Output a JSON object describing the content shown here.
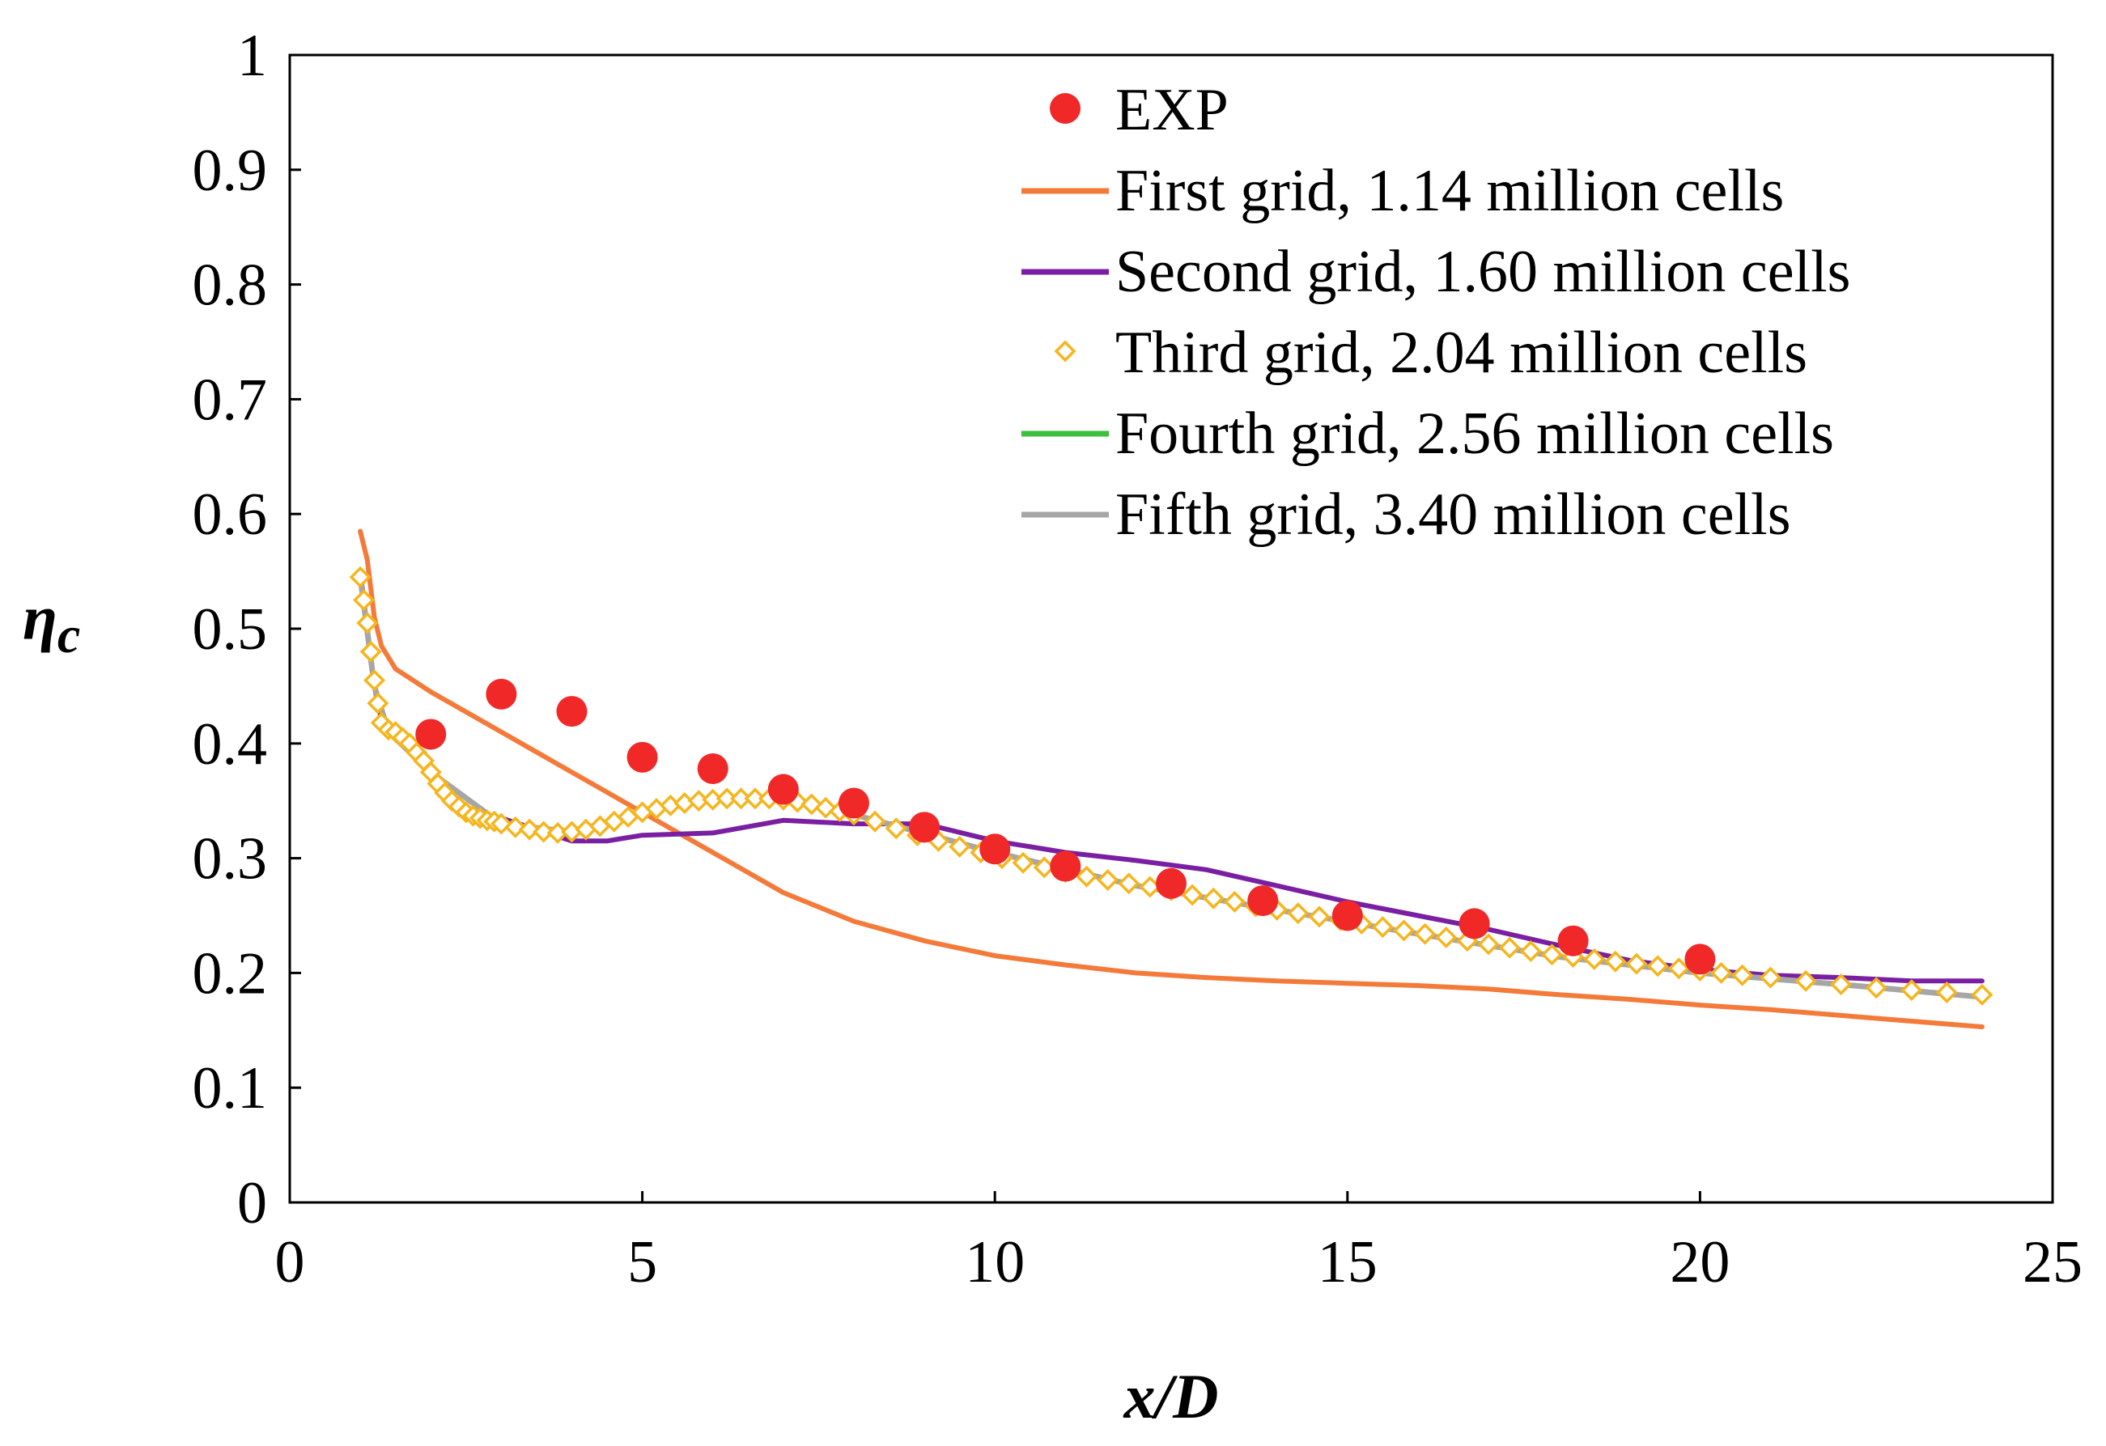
{
  "chart_data": {
    "type": "line",
    "title": "",
    "xlabel": "x/D",
    "ylabel_main": "η",
    "ylabel_sub": "c",
    "xlim": [
      0,
      25
    ],
    "ylim": [
      0,
      1
    ],
    "xticks": [
      0,
      5,
      10,
      15,
      20,
      25
    ],
    "yticks": [
      0,
      0.1,
      0.2,
      0.3,
      0.4,
      0.5,
      0.6,
      0.7,
      0.8,
      0.9,
      1
    ],
    "xtick_labels": [
      "0",
      "5",
      "10",
      "15",
      "20",
      "25"
    ],
    "ytick_labels": [
      "0",
      "0.1",
      "0.2",
      "0.3",
      "0.4",
      "0.5",
      "0.6",
      "0.7",
      "0.8",
      "0.9",
      "1"
    ],
    "grid": false,
    "legend_position": "top-right",
    "series": [
      {
        "name": "EXP",
        "kind": "scatter",
        "marker": "circle",
        "color": "#f02828",
        "x": [
          2,
          3,
          4,
          5,
          6,
          7,
          8,
          9,
          10,
          11,
          12.5,
          13.8,
          15,
          16.8,
          18.2,
          20
        ],
        "y": [
          0.408,
          0.443,
          0.428,
          0.388,
          0.378,
          0.36,
          0.348,
          0.327,
          0.308,
          0.293,
          0.278,
          0.263,
          0.25,
          0.243,
          0.228,
          0.212
        ]
      },
      {
        "name": "First grid, 1.14 million cells",
        "kind": "line",
        "color": "#f47a3a",
        "x": [
          1,
          1.1,
          1.2,
          1.3,
          1.5,
          2,
          3,
          4,
          5,
          6,
          7,
          8,
          9,
          10,
          11,
          12,
          13,
          14,
          15,
          16,
          17,
          18,
          19,
          20,
          21,
          22,
          23,
          24
        ],
        "y": [
          0.585,
          0.56,
          0.51,
          0.485,
          0.465,
          0.445,
          0.41,
          0.375,
          0.34,
          0.305,
          0.27,
          0.245,
          0.228,
          0.215,
          0.207,
          0.2,
          0.196,
          0.193,
          0.191,
          0.189,
          0.186,
          0.181,
          0.177,
          0.172,
          0.168,
          0.163,
          0.158,
          0.153
        ]
      },
      {
        "name": "Second grid, 1.60 million cells",
        "kind": "line",
        "color": "#7a1fa2",
        "x": [
          1,
          1.1,
          1.2,
          1.3,
          1.5,
          2,
          2.5,
          3,
          4,
          4.5,
          5,
          6,
          7,
          8,
          9,
          10,
          11,
          12,
          13,
          14,
          15,
          16,
          17,
          18,
          19,
          20,
          21,
          22,
          23,
          24
        ],
        "y": [
          0.55,
          0.5,
          0.45,
          0.42,
          0.41,
          0.38,
          0.335,
          0.335,
          0.315,
          0.315,
          0.32,
          0.322,
          0.333,
          0.33,
          0.33,
          0.315,
          0.305,
          0.298,
          0.29,
          0.276,
          0.262,
          0.25,
          0.238,
          0.224,
          0.211,
          0.203,
          0.198,
          0.196,
          0.193,
          0.193
        ]
      },
      {
        "name": "Third grid, 2.04 million cells",
        "kind": "scatter",
        "marker": "diamond-open",
        "color": "#f5b51c",
        "x": [
          1,
          1.05,
          1.1,
          1.15,
          1.2,
          1.25,
          1.3,
          1.4,
          1.5,
          1.6,
          1.7,
          1.8,
          1.9,
          2,
          2.1,
          2.2,
          2.3,
          2.4,
          2.5,
          2.6,
          2.7,
          2.8,
          2.9,
          3,
          3.2,
          3.4,
          3.6,
          3.8,
          4,
          4.2,
          4.4,
          4.6,
          4.8,
          5,
          5.2,
          5.4,
          5.6,
          5.8,
          6,
          6.2,
          6.4,
          6.6,
          6.8,
          7,
          7.2,
          7.4,
          7.6,
          7.8,
          8,
          8.3,
          8.6,
          8.9,
          9.2,
          9.5,
          9.8,
          10.1,
          10.4,
          10.7,
          11,
          11.3,
          11.6,
          11.9,
          12.2,
          12.5,
          12.8,
          13.1,
          13.4,
          13.7,
          14,
          14.3,
          14.6,
          14.9,
          15.2,
          15.5,
          15.8,
          16.1,
          16.4,
          16.7,
          17,
          17.3,
          17.6,
          17.9,
          18.2,
          18.5,
          18.8,
          19.1,
          19.4,
          19.7,
          20,
          20.3,
          20.6,
          21,
          21.5,
          22,
          22.5,
          23,
          23.5,
          24
        ],
        "y": [
          0.545,
          0.525,
          0.505,
          0.48,
          0.455,
          0.435,
          0.418,
          0.412,
          0.41,
          0.405,
          0.4,
          0.392,
          0.385,
          0.375,
          0.365,
          0.357,
          0.35,
          0.345,
          0.34,
          0.337,
          0.335,
          0.333,
          0.332,
          0.33,
          0.327,
          0.325,
          0.323,
          0.322,
          0.323,
          0.325,
          0.328,
          0.332,
          0.336,
          0.34,
          0.343,
          0.346,
          0.348,
          0.35,
          0.351,
          0.352,
          0.352,
          0.352,
          0.352,
          0.351,
          0.349,
          0.347,
          0.344,
          0.341,
          0.338,
          0.332,
          0.326,
          0.32,
          0.315,
          0.31,
          0.305,
          0.3,
          0.296,
          0.292,
          0.288,
          0.284,
          0.281,
          0.278,
          0.275,
          0.272,
          0.268,
          0.265,
          0.262,
          0.258,
          0.255,
          0.252,
          0.249,
          0.246,
          0.243,
          0.24,
          0.237,
          0.234,
          0.231,
          0.228,
          0.225,
          0.222,
          0.219,
          0.216,
          0.214,
          0.212,
          0.21,
          0.208,
          0.206,
          0.204,
          0.202,
          0.2,
          0.198,
          0.196,
          0.193,
          0.19,
          0.187,
          0.185,
          0.183,
          0.181
        ]
      },
      {
        "name": "Fourth grid, 2.56 million cells",
        "kind": "line",
        "color": "#3dbf3d",
        "x": [
          1,
          1.2,
          1.4,
          2,
          3,
          4,
          5,
          6,
          7,
          8,
          10,
          12,
          14,
          16,
          18,
          20,
          22,
          24
        ],
        "y": [
          0.545,
          0.45,
          0.41,
          0.375,
          0.33,
          0.323,
          0.34,
          0.351,
          0.351,
          0.338,
          0.305,
          0.276,
          0.255,
          0.234,
          0.214,
          0.2,
          0.19,
          0.179
        ]
      },
      {
        "name": "Fifth grid, 3.40 million cells",
        "kind": "line",
        "color": "#a6a6a6",
        "x": [
          1,
          1.2,
          1.4,
          2,
          3,
          4,
          5,
          6,
          7,
          8,
          10,
          12,
          14,
          16,
          18,
          20,
          22,
          24
        ],
        "y": [
          0.545,
          0.45,
          0.41,
          0.375,
          0.33,
          0.323,
          0.34,
          0.351,
          0.351,
          0.338,
          0.305,
          0.276,
          0.255,
          0.234,
          0.214,
          0.2,
          0.19,
          0.179
        ]
      }
    ]
  }
}
